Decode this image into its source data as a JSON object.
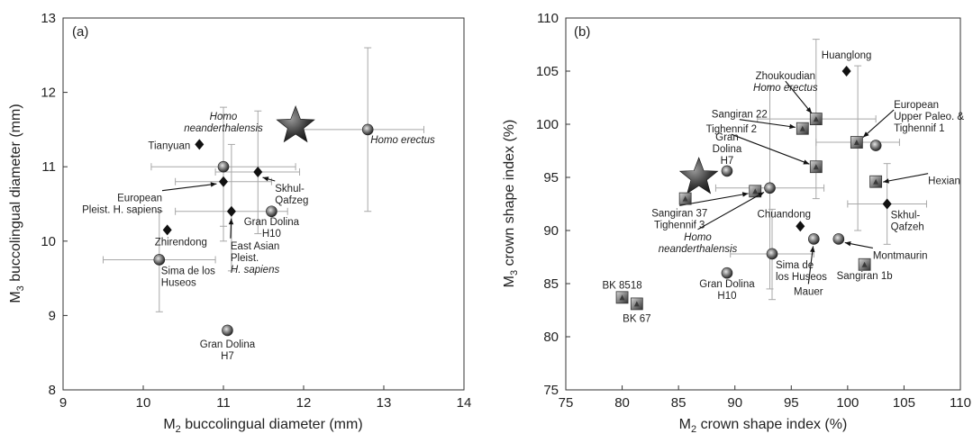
{
  "chart_data": [
    {
      "type": "scatter",
      "panel_label": "(a)",
      "xlabel_main": "M",
      "xlabel_sub": "2",
      "xlabel_rest": " buccolingual diameter (mm)",
      "ylabel_main": "M",
      "ylabel_sub": "3",
      "ylabel_rest": " buccolingual diameter (mm)",
      "xlim": [
        9,
        14
      ],
      "ylim": [
        8,
        13
      ],
      "xticks": [
        "9",
        "10",
        "11",
        "12",
        "13",
        "14"
      ],
      "yticks": [
        "8",
        "9",
        "10",
        "11",
        "12",
        "13"
      ],
      "grid": false,
      "points": [
        {
          "label": [
            "Homo erectus"
          ],
          "italic": [
            true
          ],
          "x": 12.8,
          "y": 11.5,
          "marker": "sphere",
          "xerr": [
            11.9,
            13.5
          ],
          "yerr": [
            10.4,
            12.6
          ]
        },
        {
          "label": [
            "Homo",
            "neanderthalensis"
          ],
          "italic": [
            true,
            true
          ],
          "x": 11.0,
          "y": 11.0,
          "marker": "sphere",
          "xerr": [
            10.1,
            11.9
          ],
          "yerr": [
            10.2,
            11.8
          ]
        },
        {
          "label": [
            "Tianyuan"
          ],
          "italic": [
            false
          ],
          "x": 10.7,
          "y": 11.3,
          "marker": "diamond"
        },
        {
          "label": [
            "European",
            "Pleist. H. sapiens"
          ],
          "italic": [
            false,
            false
          ],
          "x": 11.0,
          "y": 10.8,
          "marker": "diamond",
          "xerr": [
            10.4,
            11.6
          ],
          "yerr": [
            10.0,
            11.7
          ]
        },
        {
          "label": [
            "Skhul-",
            "Qafzeg"
          ],
          "italic": [
            false,
            false
          ],
          "x": 11.43,
          "y": 10.93,
          "marker": "diamond",
          "xerr": [
            10.9,
            11.95
          ],
          "yerr": [
            10.1,
            11.75
          ]
        },
        {
          "label": [
            "East Asian",
            "Pleist.",
            "H. sapiens"
          ],
          "italic": [
            false,
            false,
            true
          ],
          "x": 11.1,
          "y": 10.4,
          "marker": "diamond",
          "xerr": [
            10.4,
            11.8
          ],
          "yerr": [
            9.6,
            11.3
          ]
        },
        {
          "label": [
            "Gran Dolina",
            "H10"
          ],
          "italic": [
            false,
            false
          ],
          "x": 11.6,
          "y": 10.4,
          "marker": "sphere"
        },
        {
          "label": [
            "Zhirendong"
          ],
          "italic": [
            false
          ],
          "x": 10.3,
          "y": 10.15,
          "marker": "diamond"
        },
        {
          "label": [
            "Sima de los",
            "Huseos"
          ],
          "italic": [
            false,
            false
          ],
          "x": 10.2,
          "y": 9.75,
          "marker": "sphere",
          "xerr": [
            9.5,
            10.9
          ],
          "yerr": [
            9.05,
            10.4
          ]
        },
        {
          "label": [
            "Gran Dolina",
            "H7"
          ],
          "italic": [
            false,
            false
          ],
          "x": 11.05,
          "y": 8.8,
          "marker": "sphere"
        }
      ],
      "star": {
        "x": 11.9,
        "y": 11.55
      }
    },
    {
      "type": "scatter",
      "panel_label": "(b)",
      "xlabel_main": "M",
      "xlabel_sub": "2",
      "xlabel_rest": " crown shape index (%)",
      "ylabel_main": "M",
      "ylabel_sub": "3",
      "ylabel_rest": " crown shape index (%)",
      "xlim": [
        75,
        110
      ],
      "ylim": [
        75,
        110
      ],
      "xticks": [
        "75",
        "80",
        "85",
        "90",
        "95",
        "100",
        "105",
        "110"
      ],
      "yticks": [
        "75",
        "80",
        "85",
        "90",
        "95",
        "100",
        "105",
        "110"
      ],
      "grid": false,
      "points": [
        {
          "label": [
            "Zhoukoudian",
            "Homo erectus"
          ],
          "italic": [
            false,
            true
          ],
          "x": 97.2,
          "y": 100.5,
          "marker": "square",
          "xerr": [
            92.0,
            102.5
          ],
          "yerr": [
            93.0,
            108.0
          ]
        },
        {
          "label": [
            "Huanglong"
          ],
          "italic": [
            false
          ],
          "x": 99.9,
          "y": 105.0,
          "marker": "diamond"
        },
        {
          "label": [
            "European",
            "Upper Paleo. &",
            "Tighennif 1"
          ],
          "italic": [
            false,
            false,
            false
          ],
          "x": 100.9,
          "y": 98.3,
          "marker": "diamond",
          "xerr": [
            97.2,
            104.6
          ],
          "yerr": [
            90.0,
            105.5
          ]
        },
        {
          "label": [],
          "italic": [],
          "x": 100.8,
          "y": 98.3,
          "marker": "square"
        },
        {
          "label": [],
          "italic": [],
          "x": 102.5,
          "y": 98.0,
          "marker": "sphere"
        },
        {
          "label": [
            "Sangiran 22"
          ],
          "italic": [
            false
          ],
          "x": 96.0,
          "y": 99.6,
          "marker": "square"
        },
        {
          "label": [
            "Tighennif 2"
          ],
          "italic": [
            false
          ],
          "x": 97.2,
          "y": 96.0,
          "marker": "square"
        },
        {
          "label": [
            "Gran",
            "Dolina",
            "H7"
          ],
          "italic": [
            false,
            false,
            false
          ],
          "x": 89.3,
          "y": 95.6,
          "marker": "sphere"
        },
        {
          "label": [
            "Hexian"
          ],
          "italic": [
            false
          ],
          "x": 102.5,
          "y": 94.6,
          "marker": "square"
        },
        {
          "label": [
            "Skhul-",
            "Qafzeh"
          ],
          "italic": [
            false,
            false
          ],
          "x": 103.5,
          "y": 92.5,
          "marker": "diamond",
          "xerr": [
            100.0,
            107.0
          ],
          "yerr": [
            88.7,
            96.3
          ]
        },
        {
          "label": [
            "Sangiran 37",
            "Tighennif 3"
          ],
          "italic": [
            false,
            false
          ],
          "x": 91.8,
          "y": 93.7,
          "marker": "square"
        },
        {
          "label": [],
          "italic": [],
          "x": 85.6,
          "y": 93.0,
          "marker": "square"
        },
        {
          "label": [
            "Homo",
            "neanderthalensis"
          ],
          "italic": [
            true,
            true
          ],
          "x": 93.1,
          "y": 94.0,
          "marker": "sphere",
          "xerr": [
            88.3,
            97.9
          ],
          "yerr": [
            84.5,
            103.6
          ]
        },
        {
          "label": [
            "Chuandong"
          ],
          "italic": [
            false
          ],
          "x": 95.8,
          "y": 90.4,
          "marker": "diamond"
        },
        {
          "label": [
            "Montmaurin"
          ],
          "italic": [
            false
          ],
          "x": 99.2,
          "y": 89.2,
          "marker": "sphere"
        },
        {
          "label": [
            "Mauer"
          ],
          "italic": [
            false
          ],
          "x": 97.0,
          "y": 89.2,
          "marker": "sphere"
        },
        {
          "label": [
            "Sima de",
            "los Huseos"
          ],
          "italic": [
            false,
            false
          ],
          "x": 93.3,
          "y": 87.8,
          "marker": "sphere",
          "xerr": [
            89.6,
            97.0
          ],
          "yerr": [
            83.5,
            92.0
          ]
        },
        {
          "label": [
            "Sangiran 1b"
          ],
          "italic": [
            false
          ],
          "x": 101.5,
          "y": 86.8,
          "marker": "square"
        },
        {
          "label": [
            "Gran Dolina",
            "H10"
          ],
          "italic": [
            false,
            false
          ],
          "x": 89.3,
          "y": 86.0,
          "marker": "sphere"
        },
        {
          "label": [
            "BK 8518"
          ],
          "italic": [
            false
          ],
          "x": 80.0,
          "y": 83.7,
          "marker": "square"
        },
        {
          "label": [
            "BK 67"
          ],
          "italic": [
            false
          ],
          "x": 81.3,
          "y": 83.1,
          "marker": "square"
        }
      ],
      "star": {
        "x": 86.8,
        "y": 95.0
      }
    }
  ]
}
